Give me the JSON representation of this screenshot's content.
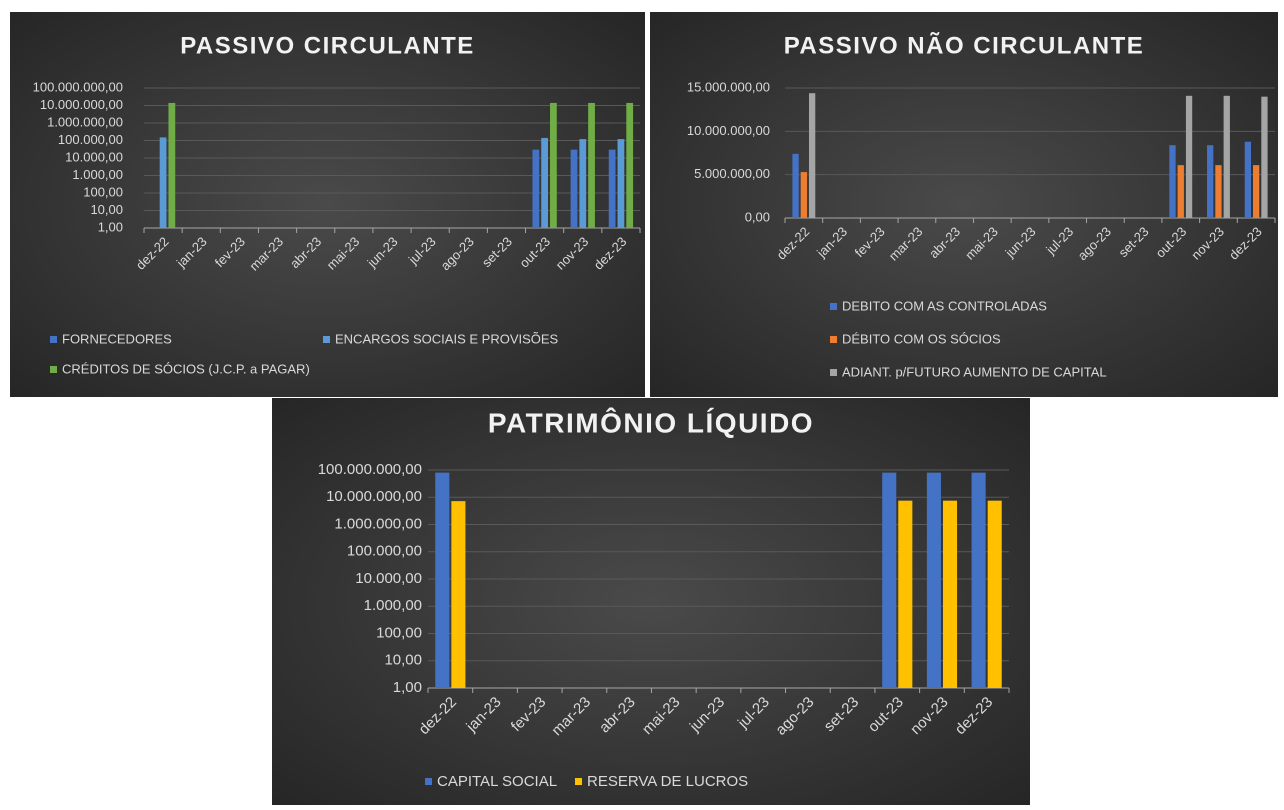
{
  "chart_data": [
    {
      "type": "bar",
      "title": "PASSIVO CIRCULANTE",
      "yscale": "log",
      "grid": true,
      "categories": [
        "dez-22",
        "jan-23",
        "fev-23",
        "mar-23",
        "abr-23",
        "mai-23",
        "jun-23",
        "jul-23",
        "ago-23",
        "set-23",
        "out-23",
        "nov-23",
        "dez-23"
      ],
      "series": [
        {
          "name": "FORNECEDORES",
          "color": "#4472c4",
          "values": [
            null,
            null,
            null,
            null,
            null,
            null,
            null,
            null,
            null,
            null,
            30000,
            30000,
            30000
          ]
        },
        {
          "name": "ENCARGOS SOCIAIS E PROVISÕES",
          "color": "#5b9bd5",
          "values": [
            150000,
            null,
            null,
            null,
            null,
            null,
            null,
            null,
            null,
            null,
            140000,
            120000,
            120000
          ]
        },
        {
          "name": "CRÉDITOS DE SÓCIOS (J.C.P. a PAGAR)",
          "color": "#70ad47",
          "values": [
            14000000,
            null,
            null,
            null,
            null,
            null,
            null,
            null,
            null,
            null,
            14000000,
            14000000,
            14000000
          ]
        }
      ],
      "ylim": [
        1,
        100000000
      ],
      "yticks": [
        {
          "value": 1,
          "label": "1,00"
        },
        {
          "value": 10,
          "label": "10,00"
        },
        {
          "value": 100,
          "label": "100,00"
        },
        {
          "value": 1000,
          "label": "1.000,00"
        },
        {
          "value": 10000,
          "label": "10.000,00"
        },
        {
          "value": 100000,
          "label": "100.000,00"
        },
        {
          "value": 1000000,
          "label": "1.000.000,00"
        },
        {
          "value": 10000000,
          "label": "10.000.000,00"
        },
        {
          "value": 100000000,
          "label": "100.000.000,00"
        }
      ]
    },
    {
      "type": "bar",
      "title": "PASSIVO NÃO CIRCULANTE",
      "yscale": "linear",
      "grid": true,
      "categories": [
        "dez-22",
        "jan-23",
        "fev-23",
        "mar-23",
        "abr-23",
        "mai-23",
        "jun-23",
        "jul-23",
        "ago-23",
        "set-23",
        "out-23",
        "nov-23",
        "dez-23"
      ],
      "series": [
        {
          "name": "DEBITO COM AS CONTROLADAS",
          "color": "#4472c4",
          "values": [
            7400000,
            null,
            null,
            null,
            null,
            null,
            null,
            null,
            null,
            null,
            8400000,
            8400000,
            8800000
          ]
        },
        {
          "name": "DÉBITO COM OS SÓCIOS",
          "color": "#ed7d31",
          "values": [
            5300000,
            null,
            null,
            null,
            null,
            null,
            null,
            null,
            null,
            null,
            6100000,
            6100000,
            6100000
          ]
        },
        {
          "name": "ADIANT. p/FUTURO AUMENTO DE CAPITAL",
          "color": "#a5a5a5",
          "values": [
            14400000,
            null,
            null,
            null,
            null,
            null,
            null,
            null,
            null,
            null,
            14100000,
            14100000,
            14000000
          ]
        }
      ],
      "ylim": [
        0,
        15000000
      ],
      "yticks": [
        {
          "value": 0,
          "label": "0,00"
        },
        {
          "value": 5000000,
          "label": "5.000.000,00"
        },
        {
          "value": 10000000,
          "label": "10.000.000,00"
        },
        {
          "value": 15000000,
          "label": "15.000.000,00"
        }
      ]
    },
    {
      "type": "bar",
      "title": "PATRIMÔNIO LÍQUIDO",
      "yscale": "log",
      "grid": true,
      "categories": [
        "dez-22",
        "jan-23",
        "fev-23",
        "mar-23",
        "abr-23",
        "mai-23",
        "jun-23",
        "jul-23",
        "ago-23",
        "set-23",
        "out-23",
        "nov-23",
        "dez-23"
      ],
      "series": [
        {
          "name": "CAPITAL SOCIAL",
          "color": "#4472c4",
          "values": [
            80000000,
            null,
            null,
            null,
            null,
            null,
            null,
            null,
            null,
            null,
            80000000,
            80000000,
            80000000
          ]
        },
        {
          "name": "RESERVA DE LUCROS",
          "color": "#ffc000",
          "values": [
            7200000,
            null,
            null,
            null,
            null,
            null,
            null,
            null,
            null,
            null,
            7500000,
            7500000,
            7500000
          ]
        }
      ],
      "ylim": [
        1,
        100000000
      ],
      "yticks": [
        {
          "value": 1,
          "label": "1,00"
        },
        {
          "value": 10,
          "label": "10,00"
        },
        {
          "value": 100,
          "label": "100,00"
        },
        {
          "value": 1000,
          "label": "1.000,00"
        },
        {
          "value": 10000,
          "label": "10.000,00"
        },
        {
          "value": 100000,
          "label": "100.000,00"
        },
        {
          "value": 1000000,
          "label": "1.000.000,00"
        },
        {
          "value": 10000000,
          "label": "10.000.000,00"
        },
        {
          "value": 100000000,
          "label": "100.000.000,00"
        }
      ]
    }
  ]
}
